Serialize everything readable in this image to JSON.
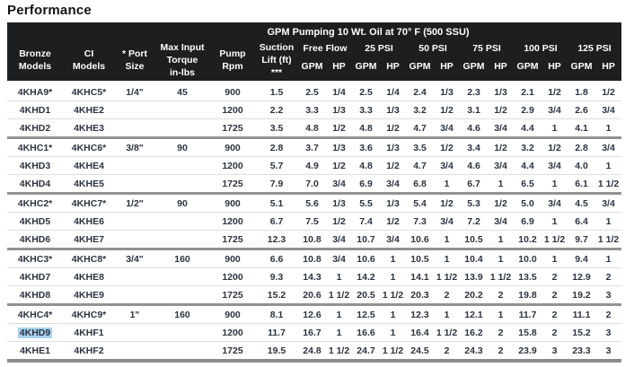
{
  "page_title": "Performance",
  "table": {
    "title": "GPM Pumping 10 Wt. Oil at 70° F (500 SSU)",
    "columns": {
      "bronze": "Bronze\nModels",
      "ci": "CI\nModels",
      "port": "* Port\nSize",
      "torque": "Max Input\nTorque\nin-lbs",
      "rpm": "Pump\nRpm",
      "suction": "Suction\nLift (ft)\n***",
      "pressure_groups": [
        "Free Flow",
        "25 PSI",
        "50 PSI",
        "75 PSI",
        "100 PSI",
        "125 PSI"
      ],
      "sub_gpm": "GPM",
      "sub_hp": "HP"
    },
    "colors": {
      "header_bg": "#1d1e20",
      "header_text": "#ffffff",
      "body_text": "#2b3340",
      "row_divider": "#dedede",
      "group_divider": "#909294",
      "selection_highlight": "#a9d2ee"
    },
    "groups": [
      {
        "port": "1/4\"",
        "torque": "45",
        "rows": [
          {
            "bronze": "4KHA9*",
            "ci": "4KHC5*",
            "rpm": "900",
            "suction": "1.5",
            "values": [
              "2.5",
              "1/4",
              "2.5",
              "1/4",
              "2.4",
              "1/3",
              "2.3",
              "1/3",
              "2.1",
              "1/2",
              "1.8",
              "1/2"
            ]
          },
          {
            "bronze": "4KHD1",
            "ci": "4KHE2",
            "rpm": "1200",
            "suction": "2.2",
            "values": [
              "3.3",
              "1/3",
              "3.3",
              "1/3",
              "3.2",
              "1/2",
              "3.1",
              "1/2",
              "2.9",
              "3/4",
              "2.6",
              "3/4"
            ]
          },
          {
            "bronze": "4KHD2",
            "ci": "4KHE3",
            "rpm": "1725",
            "suction": "3.5",
            "values": [
              "4.8",
              "1/2",
              "4.8",
              "1/2",
              "4.7",
              "3/4",
              "4.6",
              "3/4",
              "4.4",
              "1",
              "4.1",
              "1"
            ]
          }
        ]
      },
      {
        "port": "3/8\"",
        "torque": "90",
        "rows": [
          {
            "bronze": "4KHC1*",
            "ci": "4KHC6*",
            "rpm": "900",
            "suction": "2.8",
            "values": [
              "3.7",
              "1/3",
              "3.6",
              "1/3",
              "3.5",
              "1/2",
              "3.4",
              "1/2",
              "3.2",
              "1/2",
              "2.8",
              "3/4"
            ]
          },
          {
            "bronze": "4KHD3",
            "ci": "4KHE4",
            "rpm": "1200",
            "suction": "5.7",
            "values": [
              "4.9",
              "1/2",
              "4.8",
              "1/2",
              "4.7",
              "3/4",
              "4.6",
              "3/4",
              "4.4",
              "3/4",
              "4.0",
              "1"
            ]
          },
          {
            "bronze": "4KHD4",
            "ci": "4KHE5",
            "rpm": "1725",
            "suction": "7.9",
            "values": [
              "7.0",
              "3/4",
              "6.9",
              "3/4",
              "6.8",
              "1",
              "6.7",
              "1",
              "6.5",
              "1",
              "6.1",
              "1 1/2"
            ]
          }
        ]
      },
      {
        "port": "1/2\"",
        "torque": "90",
        "rows": [
          {
            "bronze": "4KHC2*",
            "ci": "4KHC7*",
            "rpm": "900",
            "suction": "5.1",
            "values": [
              "5.6",
              "1/3",
              "5.5",
              "1/3",
              "5.4",
              "1/2",
              "5.3",
              "1/2",
              "5.0",
              "3/4",
              "4.5",
              "3/4"
            ]
          },
          {
            "bronze": "4KHD5",
            "ci": "4KHE6",
            "rpm": "1200",
            "suction": "6.7",
            "values": [
              "7.5",
              "1/2",
              "7.4",
              "1/2",
              "7.3",
              "3/4",
              "7.2",
              "3/4",
              "6.9",
              "1",
              "6.4",
              "1"
            ]
          },
          {
            "bronze": "4KHD6",
            "ci": "4KHE7",
            "rpm": "1725",
            "suction": "12.3",
            "values": [
              "10.8",
              "3/4",
              "10.7",
              "3/4",
              "10.6",
              "1",
              "10.5",
              "1",
              "10.2",
              "1 1/2",
              "9.7",
              "1 1/2"
            ]
          }
        ]
      },
      {
        "port": "3/4\"",
        "torque": "160",
        "rows": [
          {
            "bronze": "4KHC3*",
            "ci": "4KHC8*",
            "rpm": "900",
            "suction": "6.6",
            "values": [
              "10.8",
              "3/4",
              "10.6",
              "1",
              "10.5",
              "1",
              "10.4",
              "1",
              "10.0",
              "1",
              "9.4",
              "1"
            ]
          },
          {
            "bronze": "4KHD7",
            "ci": "4KHE8",
            "rpm": "1200",
            "suction": "9.3",
            "values": [
              "14.3",
              "1",
              "14.2",
              "1",
              "14.1",
              "1 1/2",
              "13.9",
              "1 1/2",
              "13.5",
              "2",
              "12.9",
              "2"
            ]
          },
          {
            "bronze": "4KHD8",
            "ci": "4KHE9",
            "rpm": "1725",
            "suction": "15.2",
            "values": [
              "20.6",
              "1 1/2",
              "20.5",
              "1 1/2",
              "20.3",
              "2",
              "20.2",
              "2",
              "19.8",
              "2",
              "19.2",
              "3"
            ]
          }
        ]
      },
      {
        "port": "1\"",
        "torque": "160",
        "rows": [
          {
            "bronze": "4KHC4*",
            "ci": "4KHC9*",
            "rpm": "900",
            "suction": "8.1",
            "values": [
              "12.6",
              "1",
              "12.5",
              "1",
              "12.3",
              "1",
              "12.1",
              "1",
              "11.7",
              "2",
              "11.1",
              "2"
            ]
          },
          {
            "bronze": "4KHD9",
            "highlight": true,
            "ci": "4KHF1",
            "rpm": "1200",
            "suction": "11.7",
            "values": [
              "16.7",
              "1",
              "16.6",
              "1",
              "16.4",
              "1 1/2",
              "16.2",
              "2",
              "15.8",
              "2",
              "15.2",
              "3"
            ]
          },
          {
            "bronze": "4KHE1",
            "ci": "4KHF2",
            "rpm": "1725",
            "suction": "19.5",
            "values": [
              "24.8",
              "1 1/2",
              "24.7",
              "1 1/2",
              "24.5",
              "2",
              "24.3",
              "2",
              "23.9",
              "3",
              "23.3",
              "3"
            ]
          }
        ]
      }
    ]
  }
}
